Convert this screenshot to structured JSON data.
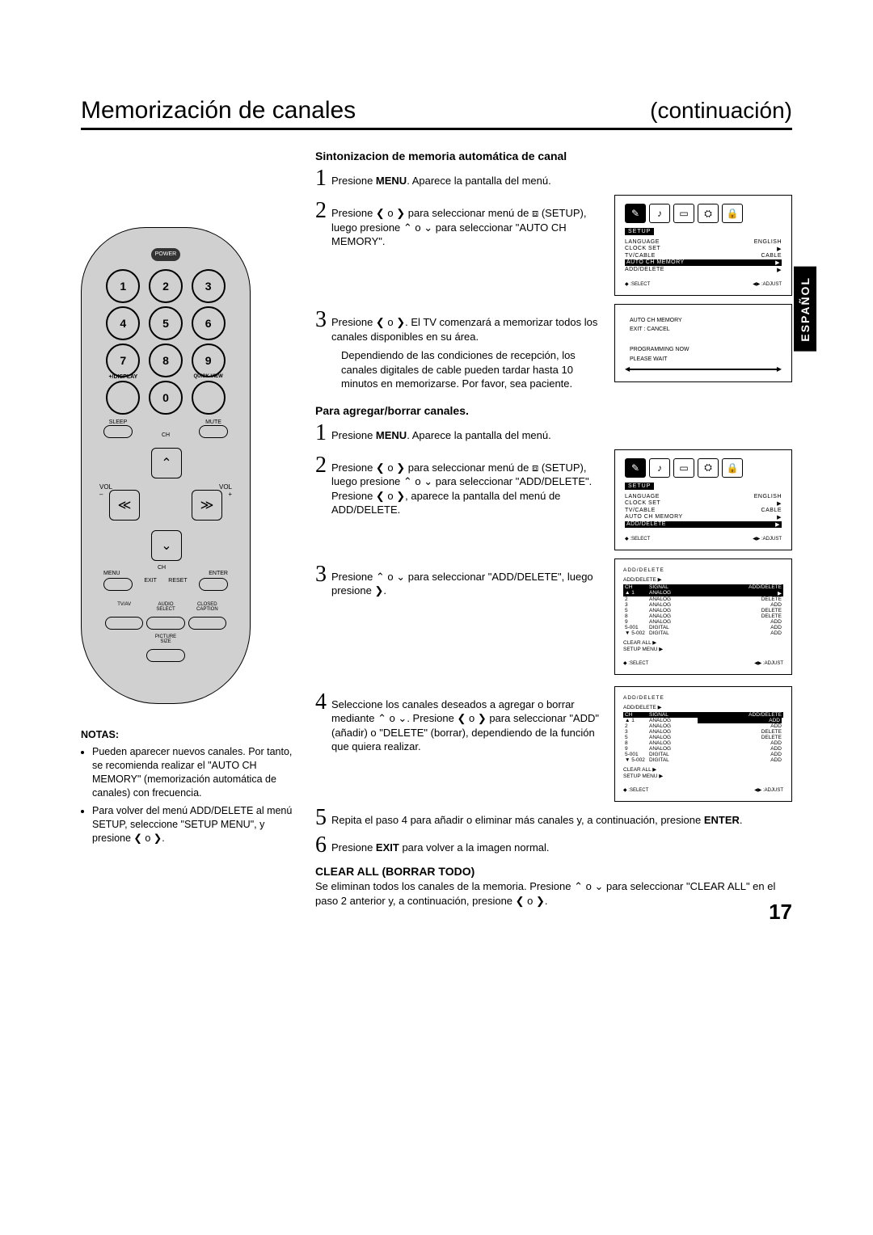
{
  "header": {
    "title": "Memorización de canales",
    "continuation": "(continuación)"
  },
  "side_tab": "ESPAÑOL",
  "page_number": "17",
  "section_a": {
    "title": "Sintonizacion de memoria automática de canal",
    "step1": "Presione MENU. Aparece la pantalla del menú.",
    "step2": "Presione ❮ o ❯ para seleccionar menú de ⧈ (SETUP), luego presione ⌃ o ⌄ para seleccionar \"AUTO CH MEMORY\".",
    "step3": "Presione ❮ o ❯. El TV comenzará a memorizar todos los canales disponibles en su área.",
    "step3_note": "Dependiendo de las condiciones de recepción, los canales digitales de cable pueden tardar hasta 10 minutos en memorizarse. Por favor, sea paciente."
  },
  "section_b": {
    "title": "Para agregar/borrar canales.",
    "step1": "Presione MENU. Aparece la pantalla del menú.",
    "step2": "Presione ❮ o ❯ para seleccionar menú de ⧈ (SETUP), luego presione ⌃ o ⌄ para seleccionar \"ADD/DELETE\". Presione ❮ o ❯, aparece la pantalla del menú de ADD/DELETE.",
    "step3": "Presione ⌃ o ⌄ para seleccionar \"ADD/DELETE\", luego presione ❯.",
    "step4": "Seleccione los canales deseados a agregar o borrar mediante ⌃ o ⌄. Presione ❮ o ❯ para seleccionar \"ADD\" (añadir) o \"DELETE\" (borrar), dependiendo de la función que quiera realizar.",
    "step5": "Repita el paso 4 para añadir o eliminar más canales y, a continuación, presione ENTER.",
    "step6": "Presione EXIT para volver a la imagen normal."
  },
  "clear_all": {
    "title": "CLEAR ALL (BORRAR TODO)",
    "text": "Se eliminan todos los canales de la memoria. Presione ⌃ o ⌄ para seleccionar \"CLEAR ALL\" en el paso 2 anterior y, a continuación, presione ❮ o ❯."
  },
  "notes": {
    "title": "NOTAS:",
    "n1": "Pueden aparecer nuevos canales. Por tanto, se recomienda realizar el \"AUTO CH MEMORY\" (memorización automática de canales) con frecuencia.",
    "n2": "Para volver del menú ADD/DELETE al menú SETUP, seleccione \"SETUP MENU\", y presione ❮ o ❯."
  },
  "remote": {
    "power": "POWER",
    "nums": [
      "1",
      "2",
      "3",
      "4",
      "5",
      "6",
      "7",
      "8",
      "9",
      "0"
    ],
    "disp": "+/DISPLAY",
    "qv": "QUICK VIEW",
    "sleep": "SLEEP",
    "mute": "MUTE",
    "ch": "CH",
    "vol_m": "VOL\n–",
    "vol_p": "VOL\n+",
    "menu": "MENU",
    "enter": "ENTER",
    "exit": "EXIT",
    "reset": "RESET",
    "tvav": "TV/AV",
    "audio": "AUDIO\nSELECT",
    "cc": "CLOSED\nCAPTION",
    "pic": "PICTURE\nSIZE"
  },
  "osd1": {
    "setup": "SETUP",
    "rows": [
      {
        "l": "LANGUAGE",
        "r": "ENGLISH"
      },
      {
        "l": "CLOCK SET",
        "r": "▶"
      },
      {
        "l": "TV/CABLE",
        "r": "CABLE"
      },
      {
        "l": "AUTO CH MEMORY",
        "r": "▶",
        "hl": true
      },
      {
        "l": "ADD/DELETE",
        "r": "▶"
      }
    ],
    "sel": "◆ :SELECT",
    "adj": "◀▶ :ADJUST"
  },
  "osd2": {
    "l1": "AUTO CH MEMORY",
    "l2": "EXIT : CANCEL",
    "l3": "PROGRAMMING NOW",
    "l4": "PLEASE WAIT"
  },
  "osd3": {
    "setup": "SETUP",
    "rows": [
      {
        "l": "LANGUAGE",
        "r": "ENGLISH"
      },
      {
        "l": "CLOCK SET",
        "r": "▶"
      },
      {
        "l": "TV/CABLE",
        "r": "CABLE"
      },
      {
        "l": "AUTO CH MEMORY",
        "r": "▶"
      },
      {
        "l": "ADD/DELETE",
        "r": "▶",
        "hl": true
      }
    ],
    "sel": "◆ :SELECT",
    "adj": "◀▶ :ADJUST"
  },
  "osd4": {
    "title": "ADD/DELETE",
    "sub": "ADD/DELETE      ▶",
    "h1": "CH",
    "h2": "SIGNAL",
    "h3": "ADD/DELETE",
    "rows": [
      {
        "c1": "▲ 1",
        "c2": "ANALOG",
        "c3": "▶",
        "hl": true
      },
      {
        "c1": "2",
        "c2": "ANALOG",
        "c3": "DELETE"
      },
      {
        "c1": "3",
        "c2": "ANALOG",
        "c3": "ADD"
      },
      {
        "c1": "5",
        "c2": "ANALOG",
        "c3": "DELETE"
      },
      {
        "c1": "8",
        "c2": "ANALOG",
        "c3": "DELETE"
      },
      {
        "c1": "9",
        "c2": "ANALOG",
        "c3": "ADD"
      },
      {
        "c1": "5-001",
        "c2": "DIGITAL",
        "c3": "ADD"
      },
      {
        "c1": "▼ 5-002",
        "c2": "DIGITAL",
        "c3": "ADD"
      }
    ],
    "f1": "CLEAR ALL       ▶",
    "f2": "SETUP MENU      ▶",
    "sel": "◆ :SELECT",
    "adj": "◀▶ :ADJUST"
  },
  "osd5": {
    "title": "ADD/DELETE",
    "sub": "ADD/DELETE      ▶",
    "h1": "CH",
    "h2": "SIGNAL",
    "h3": "ADD/DELETE",
    "rows": [
      {
        "c1": "▲ 1",
        "c2": "ANALOG",
        "c3": "ADD",
        "hlr": true
      },
      {
        "c1": "2",
        "c2": "ANALOG",
        "c3": "ADD"
      },
      {
        "c1": "3",
        "c2": "ANALOG",
        "c3": "DELETE"
      },
      {
        "c1": "5",
        "c2": "ANALOG",
        "c3": "DELETE"
      },
      {
        "c1": "8",
        "c2": "ANALOG",
        "c3": "ADD"
      },
      {
        "c1": "9",
        "c2": "ANALOG",
        "c3": "ADD"
      },
      {
        "c1": "5-001",
        "c2": "DIGITAL",
        "c3": "ADD"
      },
      {
        "c1": "▼ 5-002",
        "c2": "DIGITAL",
        "c3": "ADD"
      }
    ],
    "f1": "CLEAR ALL       ▶",
    "f2": "SETUP MENU      ▶",
    "sel": "◆ :SELECT",
    "adj": "◀▶ :ADJUST"
  }
}
